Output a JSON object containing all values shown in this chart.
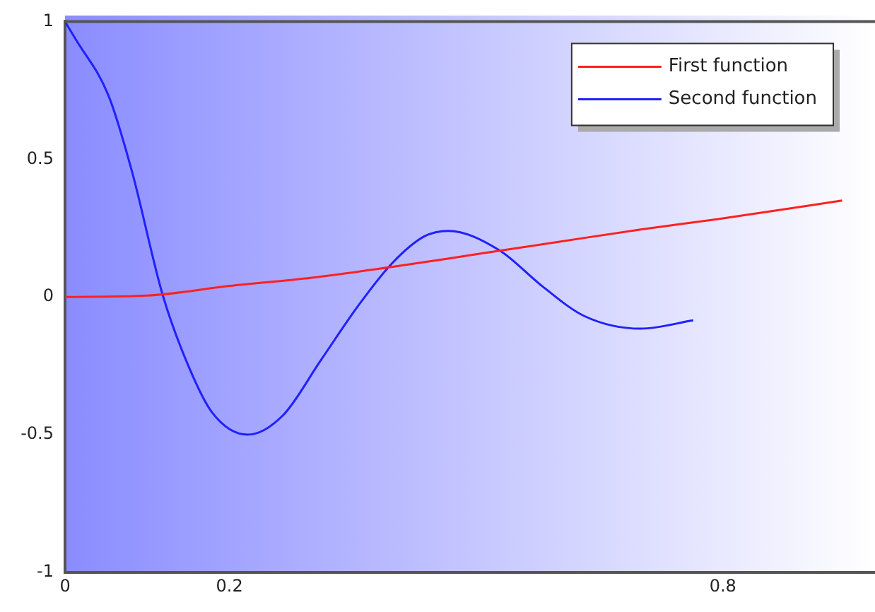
{
  "chart_data": {
    "type": "line",
    "x": [
      0,
      0.1,
      0.2,
      0.3,
      0.4,
      0.5,
      0.6,
      0.7,
      0.8,
      0.945
    ],
    "series": [
      {
        "name": "First function",
        "color": "#ff2020",
        "values": [
          0,
          0.005,
          0.04,
          0.07,
          0.11,
          0.155,
          0.2,
          0.245,
          0.285,
          0.35
        ]
      },
      {
        "name": "Second function",
        "color": "#2020ff",
        "x": [
          0,
          0.012,
          0.053,
          0.081,
          0.119,
          0.15,
          0.179,
          0.222,
          0.265,
          0.311,
          0.357,
          0.397,
          0.437,
          0.466,
          0.528,
          0.58,
          0.632,
          0.7,
          0.764
        ],
        "values": [
          1,
          0.94,
          0.73,
          0.46,
          0.005,
          -0.25,
          -0.42,
          -0.5,
          -0.43,
          -0.23,
          -0.03,
          0.12,
          0.22,
          0.24,
          0.17,
          0.04,
          -0.07,
          -0.115,
          -0.085
        ]
      }
    ],
    "xlim": [
      0,
      0.985
    ],
    "xticks": [
      0,
      0.2,
      0.8
    ],
    "ylim": [
      -1,
      1
    ],
    "yticks": [
      -1,
      -0.5,
      0,
      0.5,
      1
    ],
    "grid": false,
    "legend": "top right",
    "marker": "none",
    "line_style": "solid"
  }
}
